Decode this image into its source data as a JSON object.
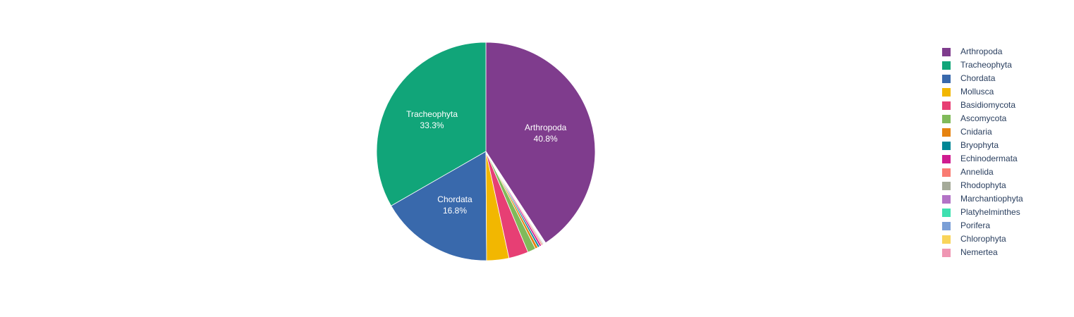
{
  "chart_data": {
    "type": "pie",
    "categories": [
      "Arthropoda",
      "Tracheophyta",
      "Chordata",
      "Mollusca",
      "Basidiomycota",
      "Ascomycota",
      "Cnidaria",
      "Bryophyta",
      "Echinodermata",
      "Annelida",
      "Rhodophyta",
      "Marchantiophyta",
      "Platyhelminthes",
      "Porifera",
      "Chlorophyta",
      "Nemertea"
    ],
    "values": [
      40.8,
      33.3,
      16.8,
      3.3,
      2.9,
      1.2,
      0.4,
      0.3,
      0.3,
      0.2,
      0.15,
      0.1,
      0.1,
      0.08,
      0.05,
      0.02
    ],
    "value_labels": [
      "40.8%",
      "33.3%",
      "16.8%",
      null,
      null,
      null,
      null,
      null,
      null,
      null,
      null,
      null,
      null,
      null,
      null,
      null
    ],
    "colors": [
      "#7F3C8D",
      "#11A579",
      "#3969AC",
      "#F2B701",
      "#E73F74",
      "#80BA5A",
      "#E68310",
      "#008695",
      "#CF1C90",
      "#F97B72",
      "#A5AA99",
      "#B373C6",
      "#3EE0B0",
      "#7B9FD6",
      "#F9D45A",
      "#EF96B3"
    ],
    "legend": "right"
  }
}
